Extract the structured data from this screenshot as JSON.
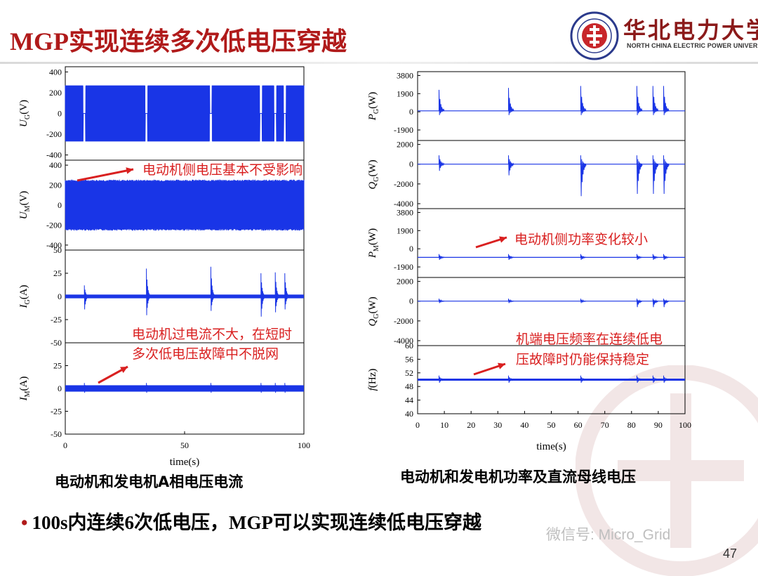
{
  "slide": {
    "title": "MGP实现连续多次低电压穿越",
    "university_name": "华北电力大学",
    "university_name_en": "NORTH CHINA ELECTRIC POWER UNIVERSITY",
    "caption_left": "电动机和发电机A相电压电流",
    "caption_right": "电动机和发电机功率及直流母线电压",
    "bullet": "100s内连续6次低电压，MGP可以实现连续低电压穿越",
    "wechat": "微信号: Micro_Grid",
    "page_number": "47"
  },
  "chart_data": [
    {
      "id": "left",
      "type": "line",
      "xlabel": "time(s)",
      "xlim": [
        0,
        100
      ],
      "xticks": [
        "0",
        "50",
        "100"
      ],
      "fault_times": [
        8,
        34,
        61,
        82,
        88,
        92
      ],
      "panels": [
        {
          "ylabel_main": "U",
          "ylabel_sub": "G",
          "ylabel_unit": "(V)",
          "ylim": [
            -450,
            450
          ],
          "yticks": [
            "400",
            "200",
            "0",
            "-200",
            "-400"
          ],
          "yvals": [
            400,
            200,
            0,
            -200,
            -400
          ],
          "signal": "ug",
          "amplitude": 270
        },
        {
          "ylabel_main": "U",
          "ylabel_sub": "M",
          "ylabel_unit": "(V)",
          "ylim": [
            -450,
            450
          ],
          "yticks": [
            "400",
            "200",
            "0",
            "-200",
            "-400"
          ],
          "yvals": [
            400,
            200,
            0,
            -200,
            -400
          ],
          "signal": "um",
          "amplitude": 250
        },
        {
          "ylabel_main": "I",
          "ylabel_sub": "G",
          "ylabel_unit": "(A)",
          "ylim": [
            -50,
            50
          ],
          "yticks": [
            "50",
            "25",
            "0",
            "-25",
            "-50"
          ],
          "yvals": [
            50,
            25,
            0,
            -25,
            -50
          ],
          "signal": "ig",
          "amplitude": 2
        },
        {
          "ylabel_main": "I",
          "ylabel_sub": "M",
          "ylabel_unit": "(A)",
          "ylim": [
            -50,
            50
          ],
          "yticks": [
            "25",
            "0",
            "-25",
            "-50"
          ],
          "yvals": [
            25,
            0,
            -25,
            -50
          ],
          "signal": "im",
          "amplitude": 3.5
        }
      ],
      "annotations": [
        {
          "text": "电动机侧电压基本不受影响"
        },
        {
          "text": "电动机过电流不大，在短时"
        },
        {
          "text": "多次低电压故障中不脱网"
        }
      ]
    },
    {
      "id": "right",
      "type": "line",
      "xlabel": "time(s)",
      "xlim": [
        0,
        100
      ],
      "xticks": [
        "0",
        "10",
        "20",
        "30",
        "40",
        "50",
        "60",
        "70",
        "80",
        "90",
        "100"
      ],
      "fault_times": [
        8,
        34,
        61,
        82,
        88,
        92
      ],
      "panels": [
        {
          "ylabel_main": "P",
          "ylabel_sub": "G",
          "ylabel_unit": "(W)",
          "ylim": [
            -3000,
            4200
          ],
          "yticks": [
            "3800",
            "1900",
            "0",
            "-1900"
          ],
          "yvals": [
            3800,
            1900,
            0,
            -1900
          ],
          "signal": "pg",
          "baseline": 100
        },
        {
          "ylabel_main": "Q",
          "ylabel_sub": "G",
          "ylabel_unit": "(W)",
          "ylim": [
            -4500,
            2400
          ],
          "yticks": [
            "2000",
            "0",
            "-2000",
            "-4000"
          ],
          "yvals": [
            2000,
            0,
            -2000,
            -4000
          ],
          "signal": "qg",
          "baseline": 0
        },
        {
          "ylabel_main": "P",
          "ylabel_sub": "M",
          "ylabel_unit": "(W)",
          "ylim": [
            -3000,
            4200
          ],
          "yticks": [
            "3800",
            "1900",
            "0",
            "-1900"
          ],
          "yvals": [
            3800,
            1900,
            0,
            -1900
          ],
          "signal": "pm",
          "baseline": -900
        },
        {
          "ylabel_main": "Q",
          "ylabel_sub": "G",
          "ylabel_unit": "(W)",
          "ylim": [
            -4500,
            2400
          ],
          "yticks": [
            "2000",
            "0",
            "-2000",
            "-4000"
          ],
          "yvals": [
            2000,
            0,
            -2000,
            -4000
          ],
          "signal": "qm",
          "baseline": 0
        },
        {
          "ylabel_main": "f",
          "ylabel_sub": "",
          "ylabel_unit": "(Hz)",
          "ylim": [
            40,
            60
          ],
          "yticks": [
            "60",
            "56",
            "52",
            "48",
            "44",
            "40"
          ],
          "yvals": [
            60,
            56,
            52,
            48,
            44,
            40
          ],
          "signal": "f",
          "baseline": 50
        }
      ],
      "annotations": [
        {
          "text": "电动机侧功率变化较小"
        },
        {
          "text": "机端电压频率在连续低电"
        },
        {
          "text": "压故障时仍能保持稳定"
        }
      ]
    }
  ],
  "colors": {
    "title": "#b01a1a",
    "trace": "#1a35e6",
    "annotation": "#d92020",
    "arrow": "#d92020"
  }
}
